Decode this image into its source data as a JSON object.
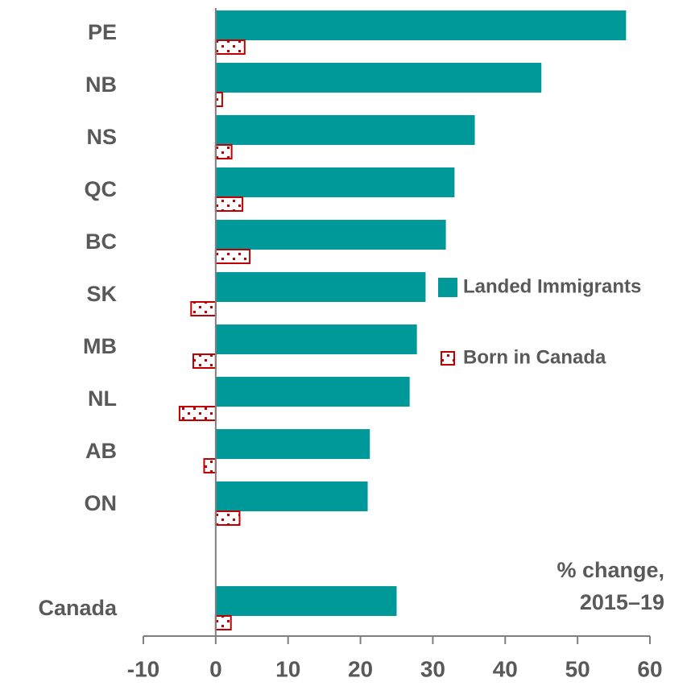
{
  "chart_data": {
    "type": "hbar",
    "categories": [
      "PE",
      "NB",
      "NS",
      "QC",
      "BC",
      "SK",
      "MB",
      "NL",
      "AB",
      "ON",
      null,
      "Canada"
    ],
    "series": [
      {
        "name": "Landed Immigrants",
        "color": "#009999",
        "pattern": "solid",
        "values": [
          56.7,
          45,
          35.8,
          33,
          31.8,
          29,
          27.8,
          26.8,
          21.3,
          21,
          null,
          25
        ]
      },
      {
        "name": "Born in Canada",
        "color": "#c00000",
        "pattern": "dotted",
        "values": [
          4.0,
          0.9,
          2.2,
          3.7,
          4.7,
          -3.4,
          -3.1,
          -5.0,
          -1.6,
          3.3,
          null,
          2.1
        ]
      }
    ],
    "xlim": [
      -10,
      60
    ],
    "xticks": [
      -10,
      0,
      10,
      20,
      30,
      40,
      50,
      60
    ],
    "annotations": [
      "% change,",
      "2015–19"
    ]
  }
}
